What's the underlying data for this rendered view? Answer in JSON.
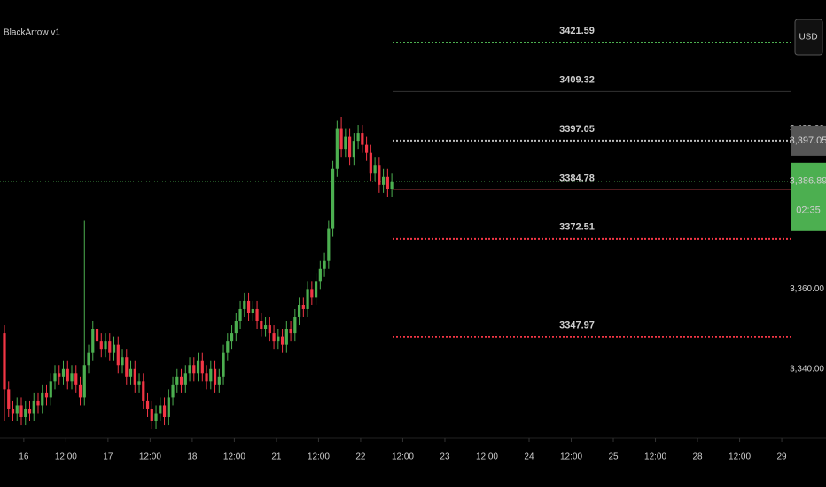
{
  "chart_data": {
    "type": "candlestick",
    "title": "BlackArrow v1",
    "currency": "USD",
    "up_color": "#4caf50",
    "down_color": "#f23645",
    "open": [
      3349,
      3335,
      3330,
      3329,
      3331,
      3328,
      3330,
      3329,
      3332,
      3331,
      3334,
      3333,
      3337,
      3339,
      3338,
      3340,
      3337,
      3339,
      3336,
      3333,
      3341,
      3344,
      3350,
      3347,
      3345,
      3347,
      3344,
      3346,
      3341,
      3343,
      3338,
      3340,
      3336,
      3337,
      3332,
      3330,
      3327,
      3329,
      3331,
      3328,
      3333,
      3336,
      3338,
      3336,
      3339,
      3341,
      3339,
      3342,
      3339,
      3337,
      3340,
      3336,
      3338,
      3344,
      3347,
      3349,
      3352,
      3355,
      3357,
      3354,
      3355,
      3352,
      3350,
      3351,
      3349,
      3347,
      3348,
      3346,
      3350,
      3349,
      3353,
      3356,
      3355,
      3360,
      3358,
      3362,
      3365,
      3367,
      3375,
      3390,
      3400,
      3395,
      3398,
      3393,
      3397,
      3399,
      3396,
      3394,
      3389,
      3391,
      3386,
      3388,
      3385
    ],
    "high": [
      3351,
      3337,
      3332,
      3333,
      3333,
      3332,
      3332,
      3334,
      3334,
      3336,
      3336,
      3339,
      3341,
      3341,
      3342,
      3342,
      3341,
      3341,
      3338,
      3377,
      3346,
      3352,
      3352,
      3349,
      3349,
      3349,
      3348,
      3348,
      3345,
      3345,
      3342,
      3342,
      3339,
      3339,
      3334,
      3332,
      3331,
      3333,
      3333,
      3335,
      3338,
      3340,
      3340,
      3341,
      3343,
      3343,
      3344,
      3344,
      3341,
      3342,
      3342,
      3340,
      3346,
      3349,
      3351,
      3354,
      3357,
      3359,
      3359,
      3357,
      3357,
      3354,
      3353,
      3353,
      3351,
      3350,
      3350,
      3352,
      3352,
      3355,
      3358,
      3358,
      3362,
      3362,
      3364,
      3367,
      3369,
      3377,
      3392,
      3402,
      3403,
      3400,
      3400,
      3399,
      3401,
      3401,
      3398,
      3396,
      3393,
      3393,
      3390,
      3390,
      3389
    ],
    "low": [
      3327,
      3328,
      3327,
      3327,
      3326,
      3326,
      3327,
      3327,
      3329,
      3329,
      3331,
      3331,
      3335,
      3336,
      3336,
      3335,
      3335,
      3334,
      3331,
      3331,
      3339,
      3342,
      3345,
      3343,
      3343,
      3342,
      3342,
      3339,
      3339,
      3336,
      3336,
      3334,
      3334,
      3330,
      3328,
      3325,
      3325,
      3327,
      3326,
      3326,
      3331,
      3334,
      3334,
      3334,
      3337,
      3337,
      3337,
      3337,
      3335,
      3335,
      3334,
      3334,
      3336,
      3342,
      3345,
      3347,
      3350,
      3353,
      3352,
      3352,
      3350,
      3348,
      3348,
      3347,
      3345,
      3345,
      3344,
      3344,
      3347,
      3347,
      3351,
      3353,
      3353,
      3356,
      3356,
      3360,
      3363,
      3365,
      3373,
      3388,
      3393,
      3393,
      3391,
      3391,
      3395,
      3394,
      3392,
      3387,
      3387,
      3384,
      3384,
      3383,
      3383
    ],
    "close": [
      3335,
      3330,
      3329,
      3331,
      3328,
      3330,
      3329,
      3332,
      3331,
      3334,
      3333,
      3337,
      3339,
      3338,
      3340,
      3337,
      3339,
      3336,
      3333,
      3341,
      3344,
      3350,
      3347,
      3345,
      3347,
      3344,
      3346,
      3341,
      3343,
      3338,
      3340,
      3336,
      3337,
      3332,
      3330,
      3327,
      3329,
      3331,
      3328,
      3333,
      3336,
      3338,
      3336,
      3339,
      3341,
      3339,
      3342,
      3339,
      3337,
      3340,
      3336,
      3338,
      3344,
      3347,
      3349,
      3352,
      3355,
      3357,
      3354,
      3355,
      3352,
      3350,
      3351,
      3349,
      3347,
      3348,
      3346,
      3350,
      3349,
      3353,
      3356,
      3355,
      3360,
      3358,
      3362,
      3365,
      3367,
      3375,
      3390,
      3400,
      3395,
      3398,
      3393,
      3397,
      3399,
      3396,
      3394,
      3389,
      3391,
      3386,
      3388,
      3385,
      3386.89
    ],
    "xlim": [
      -1.05,
      186.9
    ],
    "xticks": [
      {
        "value": 4.6,
        "label": "16"
      },
      {
        "value": 14.6,
        "label": "12:00"
      },
      {
        "value": 24.6,
        "label": "17"
      },
      {
        "value": 34.6,
        "label": "12:00"
      },
      {
        "value": 44.6,
        "label": "18"
      },
      {
        "value": 54.6,
        "label": "12:00"
      },
      {
        "value": 64.6,
        "label": "21"
      },
      {
        "value": 74.6,
        "label": "12:00"
      },
      {
        "value": 84.6,
        "label": "22"
      },
      {
        "value": 94.6,
        "label": "12:00"
      },
      {
        "value": 104.6,
        "label": "23"
      },
      {
        "value": 114.6,
        "label": "12:00"
      },
      {
        "value": 124.6,
        "label": "24"
      },
      {
        "value": 134.6,
        "label": "12:00"
      },
      {
        "value": 144.6,
        "label": "25"
      },
      {
        "value": 154.6,
        "label": "12:00"
      },
      {
        "value": 164.6,
        "label": "28"
      },
      {
        "value": 174.6,
        "label": "12:00"
      },
      {
        "value": 184.6,
        "label": "29"
      }
    ],
    "ylim": [
      3323.8,
      3432.2
    ],
    "yticks": [
      {
        "value": 3400,
        "label": "3,400.00"
      },
      {
        "value": 3360,
        "label": "3,360.00"
      },
      {
        "value": 3340,
        "label": "3,340.00"
      }
    ],
    "levels": [
      {
        "value": 3421.59,
        "color": "#4caf50",
        "style": "dotted",
        "label_color": "#ffffff"
      },
      {
        "value": 3409.32,
        "color": "#333333",
        "style": "solid",
        "label_color": "#4caf50"
      },
      {
        "value": 3397.05,
        "color": "#bbbbbb",
        "style": "dotted",
        "label_color": "#ffffff"
      },
      {
        "value": 3384.78,
        "color": "#5c1f22",
        "style": "solid",
        "label_color": "#f23645"
      },
      {
        "value": 3372.51,
        "color": "#f23645",
        "style": "dotted",
        "label_color": "#ffffff"
      },
      {
        "value": 3347.97,
        "color": "#f23645",
        "style": "dotted",
        "label_color": "#ffffff"
      }
    ],
    "price_tags": [
      {
        "value": 3397.05,
        "label": "3,397.05",
        "color": "#555555"
      }
    ],
    "last_price": {
      "value": 3386.89,
      "label": "3,386.89",
      "color": "#4caf50"
    },
    "countdown": "02:35"
  }
}
